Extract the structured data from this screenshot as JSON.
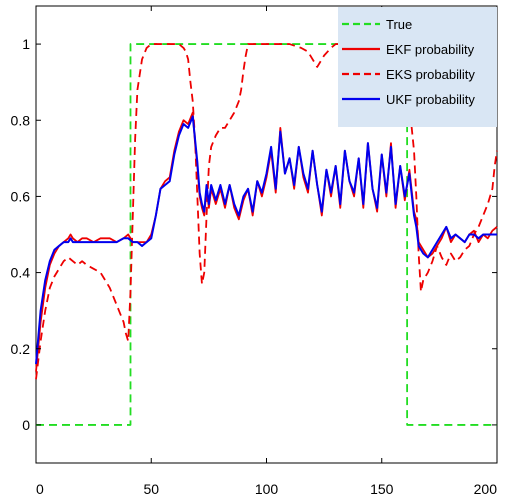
{
  "chart_data": {
    "type": "line",
    "title": "",
    "xlabel": "",
    "ylabel": "",
    "xlim": [
      0,
      200
    ],
    "ylim": [
      -0.1,
      1.1
    ],
    "xticks": [
      0,
      50,
      100,
      150,
      200
    ],
    "yticks": [
      0,
      0.2,
      0.4,
      0.6,
      0.8,
      1
    ],
    "xtick_labels": [
      "0",
      "50",
      "100",
      "150",
      "200"
    ],
    "ytick_labels": [
      "0",
      "0.2",
      "0.4",
      "0.6",
      "0.8",
      "1"
    ],
    "grid": false,
    "legend_position": "top-right",
    "series": [
      {
        "name": "True",
        "color": "#22dd22",
        "style": "dashed",
        "x": [
          0,
          40,
          40,
          41,
          41,
          160,
          160,
          161,
          161,
          200
        ],
        "y": [
          0,
          0,
          0,
          0,
          1,
          1,
          1,
          1,
          0,
          0
        ]
      },
      {
        "name": "EKF probability",
        "color": "#ee0000",
        "style": "solid",
        "x": [
          0,
          2,
          4,
          6,
          8,
          10,
          12,
          14,
          15,
          16,
          18,
          20,
          22,
          25,
          28,
          30,
          32,
          35,
          38,
          40,
          42,
          44,
          46,
          48,
          50,
          52,
          54,
          56,
          58,
          60,
          62,
          64,
          66,
          68,
          69,
          70,
          71,
          72,
          73,
          74,
          75,
          76,
          77,
          78,
          80,
          82,
          84,
          86,
          88,
          90,
          92,
          94,
          96,
          98,
          100,
          102,
          104,
          106,
          108,
          110,
          112,
          114,
          116,
          118,
          120,
          122,
          124,
          126,
          128,
          130,
          132,
          134,
          136,
          138,
          140,
          142,
          144,
          146,
          148,
          150,
          152,
          154,
          156,
          158,
          160,
          162,
          164,
          165,
          166,
          168,
          170,
          172,
          174,
          176,
          178,
          180,
          182,
          184,
          186,
          188,
          190,
          192,
          194,
          196,
          198,
          200
        ],
        "y": [
          0.14,
          0.27,
          0.36,
          0.42,
          0.45,
          0.47,
          0.48,
          0.49,
          0.5,
          0.49,
          0.48,
          0.49,
          0.49,
          0.48,
          0.49,
          0.49,
          0.49,
          0.48,
          0.49,
          0.5,
          0.48,
          0.48,
          0.48,
          0.48,
          0.5,
          0.55,
          0.62,
          0.64,
          0.65,
          0.72,
          0.77,
          0.8,
          0.79,
          0.82,
          0.74,
          0.68,
          0.6,
          0.57,
          0.55,
          0.62,
          0.57,
          0.62,
          0.6,
          0.58,
          0.62,
          0.57,
          0.63,
          0.57,
          0.54,
          0.59,
          0.62,
          0.55,
          0.64,
          0.6,
          0.65,
          0.72,
          0.61,
          0.78,
          0.66,
          0.7,
          0.62,
          0.73,
          0.65,
          0.61,
          0.72,
          0.63,
          0.55,
          0.67,
          0.6,
          0.68,
          0.57,
          0.72,
          0.64,
          0.6,
          0.7,
          0.57,
          0.74,
          0.62,
          0.56,
          0.71,
          0.6,
          0.74,
          0.57,
          0.68,
          0.59,
          0.67,
          0.56,
          0.54,
          0.48,
          0.46,
          0.44,
          0.45,
          0.47,
          0.49,
          0.52,
          0.48,
          0.5,
          0.49,
          0.48,
          0.5,
          0.51,
          0.48,
          0.5,
          0.49,
          0.51,
          0.52
        ]
      },
      {
        "name": "EKS probability",
        "color": "#ee0000",
        "style": "dashed",
        "x": [
          0,
          2,
          4,
          6,
          8,
          10,
          12,
          14,
          16,
          18,
          20,
          22,
          25,
          28,
          30,
          32,
          34,
          36,
          38,
          39,
          40,
          41,
          42,
          43,
          44,
          46,
          48,
          50,
          52,
          54,
          56,
          58,
          60,
          62,
          64,
          65,
          66,
          67,
          68,
          69,
          70,
          71,
          72,
          73,
          74,
          75,
          76,
          78,
          80,
          82,
          84,
          86,
          88,
          89,
          90,
          91,
          92,
          95,
          100,
          105,
          110,
          115,
          118,
          120,
          122,
          125,
          128,
          130,
          135,
          140,
          145,
          150,
          155,
          158,
          160,
          162,
          164,
          165,
          166,
          167,
          168,
          170,
          172,
          174,
          176,
          178,
          180,
          182,
          184,
          186,
          188,
          190,
          192,
          194,
          196,
          198,
          199,
          200
        ],
        "y": [
          0.12,
          0.22,
          0.3,
          0.36,
          0.39,
          0.41,
          0.43,
          0.44,
          0.43,
          0.42,
          0.43,
          0.42,
          0.41,
          0.4,
          0.38,
          0.36,
          0.33,
          0.3,
          0.27,
          0.24,
          0.22,
          0.35,
          0.55,
          0.75,
          0.88,
          0.96,
          0.99,
          1.0,
          1.0,
          1.0,
          1.0,
          1.0,
          1.0,
          1.0,
          0.99,
          0.98,
          0.96,
          0.9,
          0.85,
          0.75,
          0.6,
          0.45,
          0.37,
          0.4,
          0.55,
          0.68,
          0.73,
          0.76,
          0.78,
          0.78,
          0.8,
          0.82,
          0.85,
          0.88,
          0.93,
          0.97,
          1.0,
          1.0,
          1.0,
          1.0,
          1.0,
          0.99,
          0.98,
          0.96,
          0.94,
          0.97,
          0.99,
          1.0,
          1.0,
          1.0,
          1.0,
          1.0,
          0.98,
          0.95,
          0.92,
          0.84,
          0.72,
          0.6,
          0.45,
          0.35,
          0.38,
          0.4,
          0.43,
          0.47,
          0.44,
          0.42,
          0.45,
          0.43,
          0.44,
          0.46,
          0.47,
          0.5,
          0.52,
          0.55,
          0.58,
          0.62,
          0.68,
          0.72
        ]
      },
      {
        "name": "UKF probability",
        "color": "#0000ee",
        "style": "solid",
        "x": [
          0,
          2,
          4,
          6,
          8,
          10,
          12,
          14,
          15,
          16,
          18,
          20,
          22,
          25,
          28,
          30,
          32,
          35,
          38,
          40,
          42,
          44,
          46,
          48,
          50,
          52,
          54,
          56,
          58,
          60,
          62,
          64,
          66,
          68,
          69,
          70,
          71,
          72,
          73,
          74,
          75,
          76,
          77,
          78,
          80,
          82,
          84,
          86,
          88,
          90,
          92,
          94,
          96,
          98,
          100,
          102,
          104,
          106,
          108,
          110,
          112,
          114,
          116,
          118,
          120,
          122,
          124,
          126,
          128,
          130,
          132,
          134,
          136,
          138,
          140,
          142,
          144,
          146,
          148,
          150,
          152,
          154,
          156,
          158,
          160,
          162,
          164,
          165,
          166,
          168,
          170,
          172,
          174,
          176,
          178,
          180,
          182,
          184,
          186,
          188,
          190,
          192,
          194,
          196,
          198,
          200
        ],
        "y": [
          0.16,
          0.3,
          0.38,
          0.43,
          0.46,
          0.47,
          0.48,
          0.48,
          0.49,
          0.48,
          0.48,
          0.48,
          0.48,
          0.48,
          0.48,
          0.48,
          0.48,
          0.48,
          0.49,
          0.49,
          0.48,
          0.48,
          0.47,
          0.48,
          0.49,
          0.55,
          0.62,
          0.63,
          0.64,
          0.71,
          0.76,
          0.79,
          0.78,
          0.81,
          0.75,
          0.69,
          0.61,
          0.58,
          0.56,
          0.63,
          0.58,
          0.63,
          0.61,
          0.59,
          0.63,
          0.58,
          0.63,
          0.58,
          0.55,
          0.6,
          0.62,
          0.56,
          0.64,
          0.61,
          0.66,
          0.73,
          0.62,
          0.77,
          0.66,
          0.7,
          0.63,
          0.73,
          0.66,
          0.62,
          0.72,
          0.63,
          0.56,
          0.67,
          0.61,
          0.68,
          0.58,
          0.72,
          0.64,
          0.61,
          0.7,
          0.58,
          0.74,
          0.62,
          0.57,
          0.71,
          0.61,
          0.73,
          0.58,
          0.68,
          0.6,
          0.66,
          0.55,
          0.52,
          0.47,
          0.45,
          0.44,
          0.46,
          0.48,
          0.5,
          0.52,
          0.49,
          0.5,
          0.49,
          0.48,
          0.5,
          0.5,
          0.49,
          0.5,
          0.5,
          0.5,
          0.5
        ]
      }
    ]
  },
  "colors": {
    "legend_background": "#d9e6f4",
    "axes_background": "#ffffff"
  }
}
